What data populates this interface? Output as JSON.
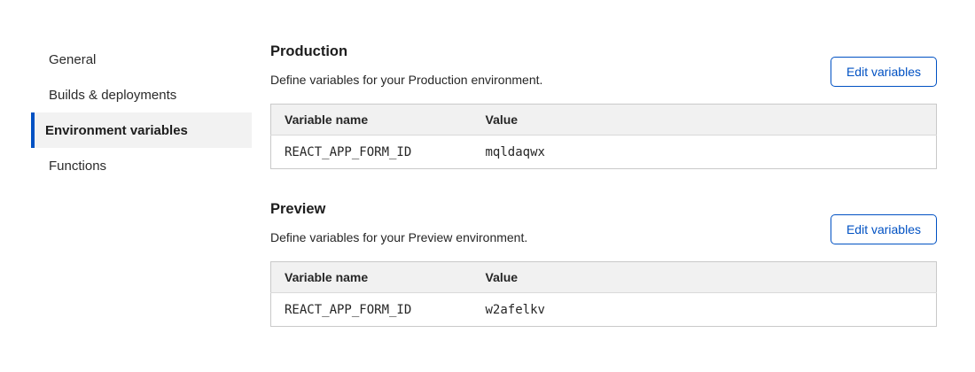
{
  "colors": {
    "accent_blue": "#0051c3",
    "selected_item_bg": "#f2f2f2",
    "table_header_bg": "#f1f1f1",
    "table_border": "#c9c9c9",
    "text": "#262626"
  },
  "sidebar": {
    "items": [
      {
        "label": "General",
        "selected": false
      },
      {
        "label": "Builds & deployments",
        "selected": false
      },
      {
        "label": "Environment variables",
        "selected": true
      },
      {
        "label": "Functions",
        "selected": false
      }
    ]
  },
  "sections": [
    {
      "title": "Production",
      "description": "Define variables for your Production environment.",
      "button_label": "Edit variables",
      "table": {
        "headers": [
          "Variable name",
          "Value"
        ],
        "rows": [
          [
            "REACT_APP_FORM_ID",
            "mqldaqwx"
          ]
        ]
      }
    },
    {
      "title": "Preview",
      "description": "Define variables for your Preview environment.",
      "button_label": "Edit variables",
      "table": {
        "headers": [
          "Variable name",
          "Value"
        ],
        "rows": [
          [
            "REACT_APP_FORM_ID",
            "w2afelkv"
          ]
        ]
      }
    }
  ]
}
